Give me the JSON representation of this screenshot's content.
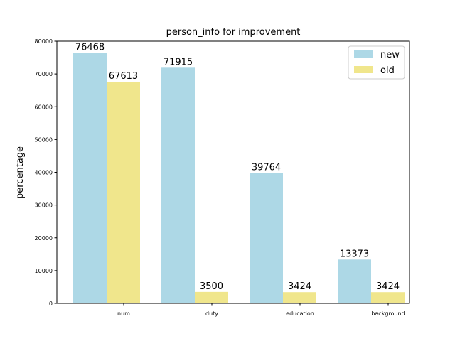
{
  "chart_data": {
    "type": "bar",
    "title": "person_info for improvement",
    "xlabel": "",
    "ylabel": "percentage",
    "categories": [
      "num",
      "duty",
      "education",
      "background"
    ],
    "series": [
      {
        "name": "new",
        "values": [
          76468,
          71915,
          39764,
          13373
        ],
        "color": "#add8e6"
      },
      {
        "name": "old",
        "values": [
          67613,
          3500,
          3424,
          3424
        ],
        "color": "#f0e68c"
      }
    ],
    "ylim": [
      0,
      80000
    ],
    "yticks": [
      0,
      10000,
      20000,
      30000,
      40000,
      50000,
      60000,
      70000,
      80000
    ],
    "grid": false,
    "legend": "top-right"
  }
}
